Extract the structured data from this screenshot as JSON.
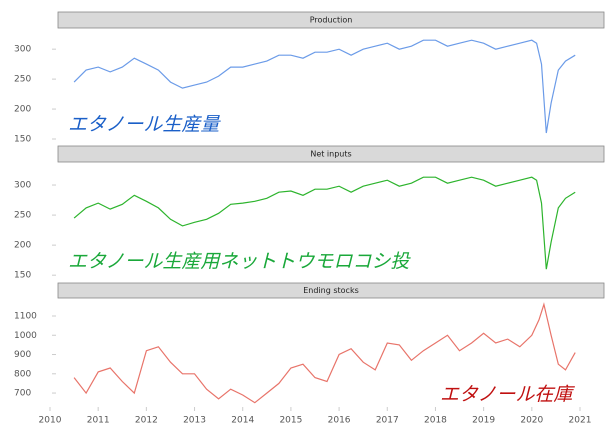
{
  "chart_data": [
    {
      "type": "line",
      "title": "Production",
      "annotation": "エタノール生産量",
      "annotation_color": "#1a5fc8",
      "color": "#6b9be8",
      "xlim": [
        2010,
        2021
      ],
      "ylim": [
        140,
        332
      ],
      "yticks": [
        150,
        200,
        250,
        300
      ],
      "x": [
        2010.5,
        2010.75,
        2011,
        2011.25,
        2011.5,
        2011.75,
        2012,
        2012.25,
        2012.5,
        2012.75,
        2013,
        2013.25,
        2013.5,
        2013.75,
        2014,
        2014.25,
        2014.5,
        2014.75,
        2015,
        2015.25,
        2015.5,
        2015.75,
        2016,
        2016.25,
        2016.5,
        2016.75,
        2017,
        2017.25,
        2017.5,
        2017.75,
        2018,
        2018.25,
        2018.5,
        2018.75,
        2019,
        2019.25,
        2019.5,
        2019.75,
        2020,
        2020.1,
        2020.2,
        2020.3,
        2020.4,
        2020.55,
        2020.7,
        2020.9
      ],
      "values": [
        245,
        265,
        270,
        262,
        270,
        285,
        275,
        265,
        245,
        235,
        240,
        245,
        255,
        270,
        270,
        275,
        280,
        290,
        290,
        285,
        295,
        295,
        300,
        290,
        300,
        305,
        310,
        300,
        305,
        315,
        315,
        305,
        310,
        315,
        310,
        300,
        305,
        310,
        315,
        310,
        275,
        160,
        210,
        265,
        280,
        290
      ]
    },
    {
      "type": "line",
      "title": "Net inputs",
      "annotation": "エタノール生産用ネットトウモロコシ投",
      "annotation_color": "#1aa83a",
      "color": "#2db42d",
      "xlim": [
        2010,
        2021
      ],
      "ylim": [
        142,
        335
      ],
      "yticks": [
        150,
        200,
        250,
        300
      ],
      "x": [
        2010.5,
        2010.75,
        2011,
        2011.25,
        2011.5,
        2011.75,
        2012,
        2012.25,
        2012.5,
        2012.75,
        2013,
        2013.25,
        2013.5,
        2013.75,
        2014,
        2014.25,
        2014.5,
        2014.75,
        2015,
        2015.25,
        2015.5,
        2015.75,
        2016,
        2016.25,
        2016.5,
        2016.75,
        2017,
        2017.25,
        2017.5,
        2017.75,
        2018,
        2018.25,
        2018.5,
        2018.75,
        2019,
        2019.25,
        2019.5,
        2019.75,
        2020,
        2020.1,
        2020.2,
        2020.3,
        2020.4,
        2020.55,
        2020.7,
        2020.9
      ],
      "values": [
        245,
        262,
        270,
        260,
        268,
        283,
        273,
        262,
        243,
        232,
        238,
        243,
        253,
        268,
        270,
        273,
        278,
        288,
        290,
        283,
        293,
        293,
        298,
        288,
        298,
        303,
        308,
        298,
        303,
        313,
        313,
        303,
        308,
        313,
        308,
        298,
        303,
        308,
        313,
        308,
        270,
        160,
        205,
        262,
        278,
        288
      ]
    },
    {
      "type": "line",
      "title": "Ending stocks",
      "annotation": "エタノール在庫",
      "annotation_color": "#c01010",
      "color": "#e8746a",
      "xlim": [
        2010,
        2021
      ],
      "ylim": [
        638,
        1183
      ],
      "yticks": [
        700,
        800,
        900,
        1000,
        1100
      ],
      "xticks": [
        2010,
        2011,
        2012,
        2013,
        2014,
        2015,
        2016,
        2017,
        2018,
        2019,
        2020,
        2021
      ],
      "x": [
        2010.5,
        2010.75,
        2011,
        2011.25,
        2011.5,
        2011.75,
        2012,
        2012.25,
        2012.5,
        2012.75,
        2013,
        2013.25,
        2013.5,
        2013.75,
        2014,
        2014.25,
        2014.5,
        2014.75,
        2015,
        2015.25,
        2015.5,
        2015.75,
        2016,
        2016.25,
        2016.5,
        2016.75,
        2017,
        2017.25,
        2017.5,
        2017.75,
        2018,
        2018.25,
        2018.5,
        2018.75,
        2019,
        2019.25,
        2019.5,
        2019.75,
        2020,
        2020.15,
        2020.25,
        2020.4,
        2020.55,
        2020.7,
        2020.9
      ],
      "values": [
        780,
        700,
        810,
        830,
        760,
        700,
        920,
        940,
        860,
        800,
        800,
        720,
        670,
        720,
        690,
        650,
        700,
        750,
        830,
        850,
        780,
        760,
        900,
        930,
        860,
        820,
        960,
        950,
        870,
        920,
        960,
        1000,
        920,
        960,
        1010,
        960,
        980,
        940,
        1000,
        1080,
        1160,
        1000,
        850,
        820,
        910
      ]
    }
  ]
}
